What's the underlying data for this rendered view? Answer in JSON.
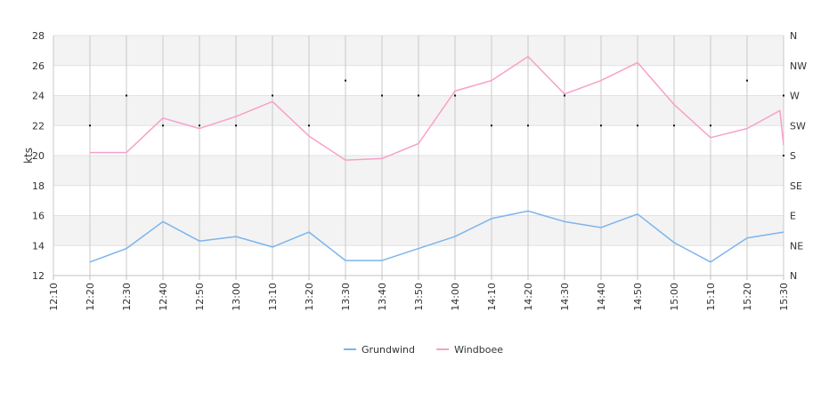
{
  "chart_data": {
    "type": "line",
    "ylabel": "kts",
    "ylim": [
      12,
      28
    ],
    "yticks": [
      "12",
      "14",
      "16",
      "18",
      "20",
      "22",
      "24",
      "26",
      "28"
    ],
    "right_axis_labels": [
      "N",
      "NE",
      "E",
      "SE",
      "S",
      "SW",
      "W",
      "NW",
      "N"
    ],
    "x_ticks": [
      "12:10",
      "12:20",
      "12:30",
      "12:40",
      "12:50",
      "13:00",
      "13:10",
      "13:20",
      "13:30",
      "13:40",
      "13:50",
      "14:00",
      "14:10",
      "14:20",
      "14:30",
      "14:40",
      "14:50",
      "15:00",
      "15:10",
      "15:20",
      "15:30"
    ],
    "x_start": "12:10",
    "x_end": "15:30",
    "grid": true,
    "legend_position": "bottom",
    "series": [
      {
        "name": "Grundwind",
        "color": "#7cb5ec",
        "x": [
          "12:20",
          "12:30",
          "12:40",
          "12:50",
          "13:00",
          "13:10",
          "13:20",
          "13:30",
          "13:40",
          "13:50",
          "14:00",
          "14:10",
          "14:20",
          "14:30",
          "14:40",
          "14:50",
          "15:00",
          "15:10",
          "15:20",
          "15:30"
        ],
        "values": [
          12.9,
          13.8,
          15.6,
          14.3,
          14.6,
          13.9,
          14.9,
          13.0,
          13.0,
          13.8,
          14.6,
          15.8,
          16.3,
          15.6,
          15.2,
          16.1,
          14.2,
          12.9,
          14.5,
          14.9
        ]
      },
      {
        "name": "Windboee",
        "color": "#f7a1c9",
        "x": [
          "12:20",
          "12:30",
          "12:40",
          "12:50",
          "13:00",
          "13:10",
          "13:20",
          "13:30",
          "13:40",
          "13:50",
          "14:00",
          "14:10",
          "14:20",
          "14:30",
          "14:40",
          "14:50",
          "15:00",
          "15:10",
          "15:20",
          "15:29",
          "15:30"
        ],
        "values": [
          20.2,
          20.2,
          22.5,
          21.8,
          22.6,
          23.6,
          21.3,
          19.7,
          19.8,
          20.8,
          24.3,
          25.0,
          26.6,
          24.1,
          25.0,
          26.2,
          23.4,
          21.2,
          21.8,
          23.0,
          20.7
        ]
      }
    ],
    "direction": {
      "x": [
        "12:20",
        "12:30",
        "12:40",
        "12:50",
        "13:00",
        "13:10",
        "13:20",
        "13:30",
        "13:40",
        "13:50",
        "14:00",
        "14:10",
        "14:20",
        "14:30",
        "14:40",
        "14:50",
        "15:00",
        "15:10",
        "15:20",
        "15:30",
        "15:30"
      ],
      "values": [
        "SW",
        "W",
        "SW",
        "SW",
        "SW",
        "W",
        "SW",
        "WNW",
        "W",
        "W",
        "W",
        "SW",
        "SW",
        "W",
        "SW",
        "SW",
        "SW",
        "SW",
        "WNW",
        "W",
        "S"
      ]
    }
  }
}
